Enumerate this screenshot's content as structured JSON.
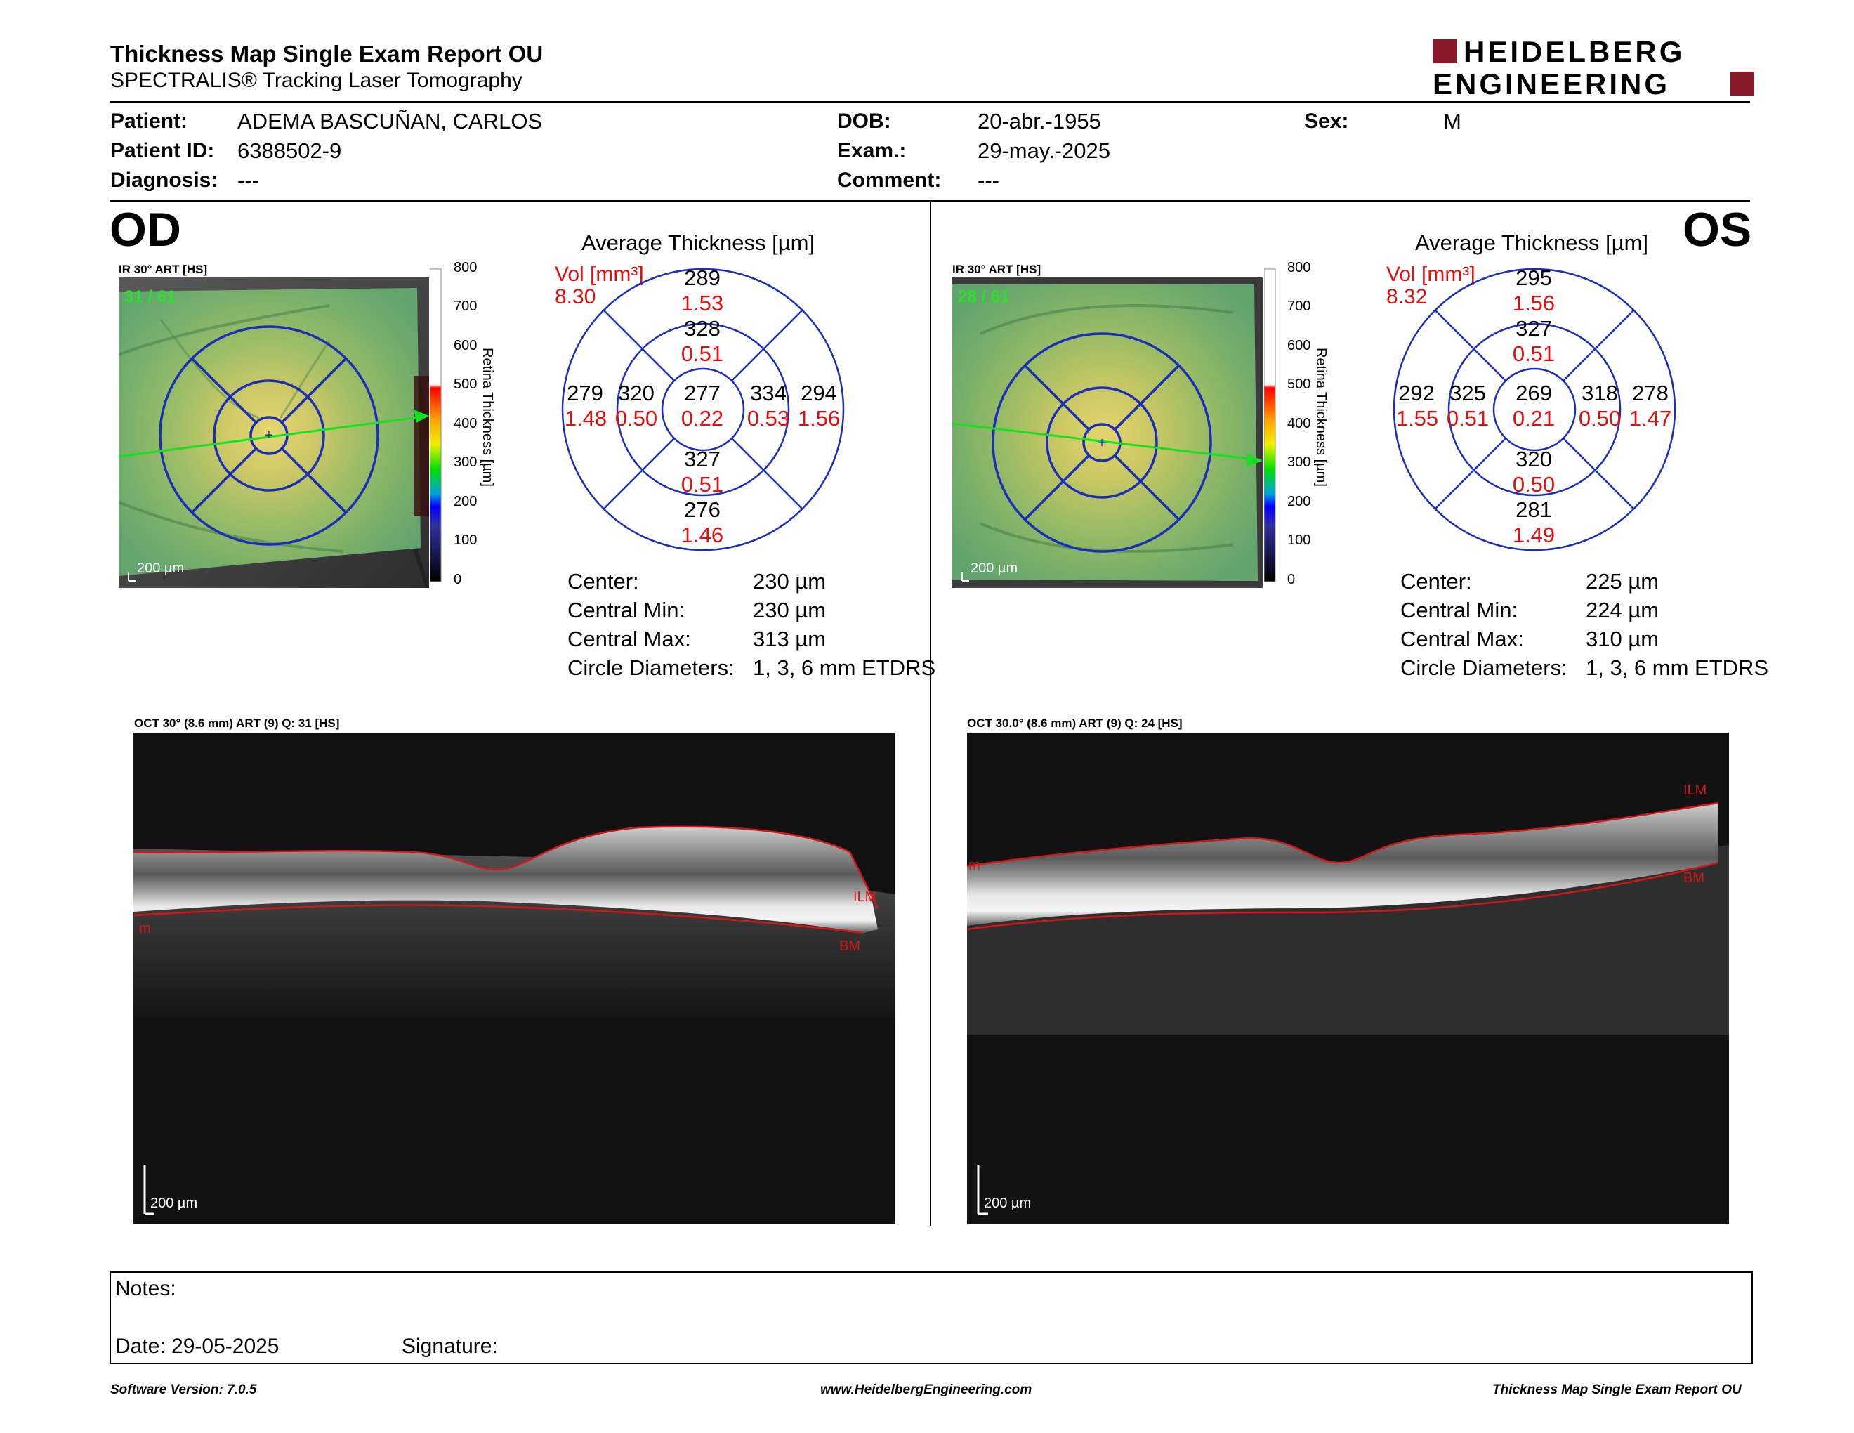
{
  "header": {
    "title": "Thickness Map Single Exam Report OU",
    "subtitle": "SPECTRALIS® Tracking Laser Tomography",
    "logo_line1": "HEIDELBERG",
    "logo_line2": "ENGINEERING"
  },
  "patient": {
    "patient_label": "Patient:",
    "patient_value": "ADEMA BASCUÑAN, CARLOS",
    "id_label": "Patient ID:",
    "id_value": "6388502-9",
    "diagnosis_label": "Diagnosis:",
    "diagnosis_value": "---",
    "dob_label": "DOB:",
    "dob_value": "20-abr.-1955",
    "exam_label": "Exam.:",
    "exam_value": "29-may.-2025",
    "comment_label": "Comment:",
    "comment_value": "---",
    "sex_label": "Sex:",
    "sex_value": "M"
  },
  "colorbar": {
    "ticks": [
      "800",
      "700",
      "600",
      "500",
      "400",
      "300",
      "200",
      "100",
      "0"
    ],
    "axis_label": "Retina Thickness [µm]"
  },
  "od": {
    "eye": "OD",
    "fundus_label": "IR 30° ART [HS]",
    "fundus_quality": "31 / 61",
    "fundus_scale": "200 µm",
    "avg_title": "Average Thickness [µm]",
    "vol_label": "Vol [mm³]",
    "vol_value": "8.30",
    "grid": {
      "center": {
        "t": "277",
        "v": "0.22"
      },
      "inner_sup": {
        "t": "328",
        "v": "0.51"
      },
      "inner_inf": {
        "t": "327",
        "v": "0.51"
      },
      "inner_left": {
        "t": "320",
        "v": "0.50"
      },
      "inner_right": {
        "t": "334",
        "v": "0.53"
      },
      "outer_sup": {
        "t": "289",
        "v": "1.53"
      },
      "outer_inf": {
        "t": "276",
        "v": "1.46"
      },
      "outer_left": {
        "t": "279",
        "v": "1.48"
      },
      "outer_right": {
        "t": "294",
        "v": "1.56"
      }
    },
    "stats": {
      "center_label": "Center:",
      "center_value": "230 µm",
      "min_label": "Central Min:",
      "min_value": "230 µm",
      "max_label": "Central Max:",
      "max_value": "313 µm",
      "diam_label": "Circle Diameters:",
      "diam_value": "1, 3, 6 mm ETDRS"
    },
    "oct_label": "OCT 30° (8.6 mm) ART (9) Q: 31 [HS]",
    "oct_ilm": "ILM",
    "oct_bm": "BM",
    "oct_m": "m",
    "oct_scale": "200 µm"
  },
  "os": {
    "eye": "OS",
    "fundus_label": "IR 30° ART [HS]",
    "fundus_quality": "28 / 61",
    "fundus_scale": "200 µm",
    "avg_title": "Average Thickness [µm]",
    "vol_label": "Vol [mm³]",
    "vol_value": "8.32",
    "grid": {
      "center": {
        "t": "269",
        "v": "0.21"
      },
      "inner_sup": {
        "t": "327",
        "v": "0.51"
      },
      "inner_inf": {
        "t": "320",
        "v": "0.50"
      },
      "inner_left": {
        "t": "325",
        "v": "0.51"
      },
      "inner_right": {
        "t": "318",
        "v": "0.50"
      },
      "outer_sup": {
        "t": "295",
        "v": "1.56"
      },
      "outer_inf": {
        "t": "281",
        "v": "1.49"
      },
      "outer_left": {
        "t": "292",
        "v": "1.55"
      },
      "outer_right": {
        "t": "278",
        "v": "1.47"
      }
    },
    "stats": {
      "center_label": "Center:",
      "center_value": "225 µm",
      "min_label": "Central Min:",
      "min_value": "224 µm",
      "max_label": "Central Max:",
      "max_value": "310 µm",
      "diam_label": "Circle Diameters:",
      "diam_value": "1, 3, 6 mm ETDRS"
    },
    "oct_label": "OCT 30.0° (8.6 mm) ART (9) Q: 24 [HS]",
    "oct_ilm": "ILM",
    "oct_bm": "BM",
    "oct_m": "m",
    "oct_scale": "200 µm"
  },
  "notes": {
    "notes_label": "Notes:",
    "date_label": "Date: 29-05-2025",
    "signature_label": "Signature:"
  },
  "footer": {
    "software": "Software Version: 7.0.5",
    "website": "www.HeidelbergEngineering.com",
    "report": "Thickness Map Single Exam Report OU"
  },
  "colors": {
    "brand": "#8b1a2b",
    "grid_blue": "#1a2fb5",
    "vol_red": "#e01010",
    "seg_red": "#d01818"
  }
}
